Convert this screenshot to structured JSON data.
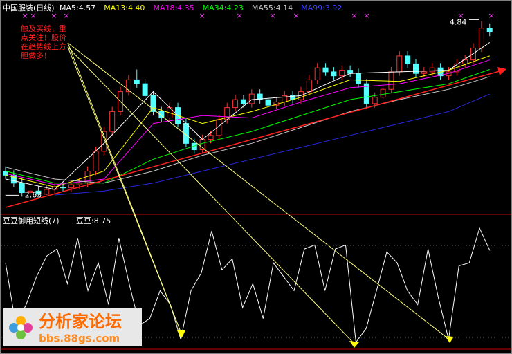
{
  "chart_data": [
    {
      "type": "candlestick",
      "title": "中国服装(日线)",
      "up_color": "#ff3232",
      "down_color": "#54ffff",
      "ylim": [
        2.45,
        5.0
      ],
      "open": [
        2.95,
        2.9,
        2.8,
        2.68,
        2.7,
        2.66,
        2.72,
        2.75,
        2.74,
        2.78,
        2.8,
        2.95,
        3.2,
        3.45,
        3.7,
        3.95,
        4.1,
        4.05,
        3.9,
        3.7,
        3.62,
        3.75,
        3.55,
        3.3,
        3.22,
        3.35,
        3.4,
        3.6,
        3.75,
        3.85,
        3.8,
        3.92,
        3.85,
        3.78,
        3.82,
        3.9,
        3.85,
        3.95,
        4.1,
        4.25,
        4.2,
        4.15,
        4.22,
        4.18,
        4.05,
        3.8,
        3.88,
        3.98,
        4.2,
        4.4,
        4.3,
        4.18,
        4.2,
        4.25,
        4.15,
        4.2,
        4.3,
        4.35,
        4.5,
        4.75
      ],
      "high": [
        3.01,
        2.96,
        2.86,
        2.76,
        2.76,
        2.78,
        2.81,
        2.81,
        2.84,
        2.86,
        3.01,
        3.26,
        3.51,
        3.76,
        4.01,
        4.16,
        4.23,
        4.11,
        3.96,
        3.76,
        3.81,
        3.81,
        3.61,
        3.36,
        3.41,
        3.46,
        3.66,
        3.81,
        3.91,
        3.91,
        3.98,
        3.98,
        3.91,
        3.88,
        3.96,
        3.96,
        4.01,
        4.16,
        4.31,
        4.31,
        4.26,
        4.28,
        4.28,
        4.24,
        4.11,
        3.94,
        4.04,
        4.26,
        4.46,
        4.46,
        4.36,
        4.26,
        4.31,
        4.31,
        4.26,
        4.36,
        4.41,
        4.56,
        4.84,
        4.81
      ],
      "low": [
        2.85,
        2.75,
        2.63,
        2.64,
        2.64,
        2.65,
        2.67,
        2.69,
        2.69,
        2.73,
        2.75,
        2.9,
        3.15,
        3.4,
        3.65,
        3.9,
        4.0,
        3.85,
        3.65,
        3.57,
        3.57,
        3.5,
        3.25,
        3.17,
        3.17,
        3.3,
        3.35,
        3.55,
        3.7,
        3.75,
        3.75,
        3.8,
        3.73,
        3.73,
        3.77,
        3.8,
        3.8,
        3.9,
        4.05,
        4.15,
        4.1,
        4.1,
        4.13,
        4.0,
        3.75,
        3.75,
        3.83,
        3.93,
        4.15,
        4.25,
        4.13,
        4.13,
        4.15,
        4.1,
        4.1,
        4.15,
        4.25,
        4.3,
        4.45,
        4.65
      ],
      "close": [
        2.9,
        2.8,
        2.68,
        2.7,
        2.66,
        2.72,
        2.75,
        2.74,
        2.78,
        2.8,
        2.95,
        3.2,
        3.45,
        3.7,
        3.95,
        4.1,
        4.05,
        3.9,
        3.7,
        3.62,
        3.75,
        3.55,
        3.3,
        3.22,
        3.35,
        3.4,
        3.6,
        3.75,
        3.85,
        3.8,
        3.92,
        3.85,
        3.78,
        3.82,
        3.9,
        3.85,
        3.95,
        4.1,
        4.25,
        4.2,
        4.15,
        4.22,
        4.18,
        4.05,
        3.8,
        3.88,
        3.98,
        4.2,
        4.4,
        4.3,
        4.18,
        4.2,
        4.25,
        4.15,
        4.2,
        4.3,
        4.35,
        4.5,
        4.75,
        4.7
      ],
      "series": [
        {
          "name": "MA5:4.57",
          "color": "#ffffff",
          "x": [
            0,
            6,
            12,
            18,
            24,
            30,
            36,
            42,
            48,
            54,
            59
          ],
          "values": [
            2.85,
            2.72,
            3.3,
            3.95,
            3.35,
            3.85,
            3.9,
            4.18,
            4.2,
            4.22,
            4.57
          ]
        },
        {
          "name": "MA13:4.40",
          "color": "#ffff00",
          "x": [
            0,
            6,
            12,
            18,
            24,
            30,
            36,
            42,
            48,
            54,
            59
          ],
          "values": [
            2.9,
            2.75,
            2.95,
            3.75,
            3.55,
            3.7,
            3.88,
            4.1,
            4.08,
            4.22,
            4.4
          ]
        },
        {
          "name": "MA18:4.35",
          "color": "#ff00ff",
          "x": [
            0,
            6,
            12,
            18,
            24,
            30,
            36,
            42,
            48,
            54,
            59
          ],
          "values": [
            2.92,
            2.78,
            2.85,
            3.55,
            3.65,
            3.62,
            3.82,
            4.0,
            4.05,
            4.18,
            4.35
          ]
        },
        {
          "name": "MA34:4.23",
          "color": "#00ff00",
          "x": [
            0,
            6,
            12,
            18,
            24,
            30,
            36,
            42,
            48,
            54,
            59
          ],
          "values": [
            2.95,
            2.8,
            2.8,
            3.1,
            3.3,
            3.45,
            3.65,
            3.85,
            3.95,
            4.05,
            4.23
          ]
        },
        {
          "name": "MA55:4.14",
          "color": "#c8c8c8",
          "x": [
            0,
            6,
            12,
            18,
            24,
            30,
            36,
            42,
            48,
            54,
            59
          ],
          "values": [
            3.0,
            2.85,
            2.8,
            2.95,
            3.15,
            3.3,
            3.5,
            3.7,
            3.85,
            3.98,
            4.14
          ]
        },
        {
          "name": "MA99:3.92",
          "color": "#2828e0",
          "x": [
            6,
            12,
            18,
            24,
            30,
            36,
            42,
            48,
            54,
            59
          ],
          "values": [
            2.65,
            2.7,
            2.8,
            2.95,
            3.1,
            3.25,
            3.4,
            3.55,
            3.7,
            3.92
          ]
        }
      ],
      "annotation": [
        "触及买线，重",
        "点关注！股价",
        "在趋势线上方",
        "胆做多！"
      ]
    },
    {
      "type": "line",
      "title": "豆豆御用短线(7)",
      "ylim": [
        -0.5,
        11
      ],
      "series": [
        {
          "name": "豆豆:8.75",
          "color": "#ffffff",
          "values": [
            7.5,
            1.2,
            3.3,
            6.1,
            8.2,
            8.9,
            5.4,
            10,
            4.7,
            7.5,
            3.3,
            10,
            5.4,
            1.2,
            1.9,
            4.7,
            3.3,
            -0.2,
            4.7,
            6.5,
            10.7,
            6.8,
            7.9,
            3,
            5.4,
            1.9,
            7.5,
            6.1,
            4.7,
            8.9,
            9.3,
            4.7,
            8.9,
            9.3,
            -0.5,
            0.9,
            4.7,
            8.6,
            7.5,
            4.7,
            3.3,
            8.9,
            4,
            -0.2,
            7.2,
            7.5,
            11,
            8.75
          ]
        }
      ]
    }
  ],
  "watermark": {
    "title": "分析家论坛",
    "url": "bbs.88gs.com"
  }
}
